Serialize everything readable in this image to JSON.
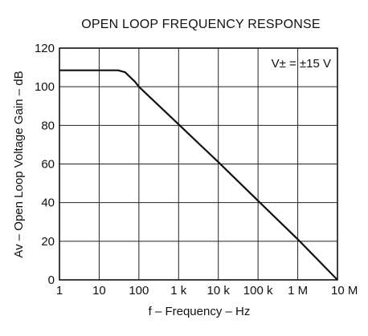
{
  "chart_data": {
    "type": "line",
    "title": "OPEN LOOP FREQUENCY RESPONSE",
    "annotation": "V± = ±15 V",
    "xlabel": "f – Frequency – Hz",
    "ylabel": "Av – Open Loop Voltage Gain – dB",
    "xscale": "log",
    "xlim": [
      1,
      10000000
    ],
    "ylim": [
      0,
      120
    ],
    "grid": true,
    "x_ticks": [
      {
        "value": 1,
        "label": "1"
      },
      {
        "value": 10,
        "label": "10"
      },
      {
        "value": 100,
        "label": "100"
      },
      {
        "value": 1000,
        "label": "1 k"
      },
      {
        "value": 10000,
        "label": "10 k"
      },
      {
        "value": 100000,
        "label": "100 k"
      },
      {
        "value": 1000000,
        "label": "1 M"
      },
      {
        "value": 10000000,
        "label": "10 M"
      }
    ],
    "y_ticks": [
      {
        "value": 0,
        "label": "0"
      },
      {
        "value": 20,
        "label": "20"
      },
      {
        "value": 40,
        "label": "40"
      },
      {
        "value": 60,
        "label": "60"
      },
      {
        "value": 80,
        "label": "80"
      },
      {
        "value": 100,
        "label": "100"
      },
      {
        "value": 120,
        "label": "120"
      }
    ],
    "series": [
      {
        "x": [
          1,
          30,
          45,
          60,
          80,
          100,
          1000,
          10000,
          100000,
          1000000,
          10000000
        ],
        "y": [
          108.5,
          108.5,
          107.5,
          105,
          102.5,
          100,
          80.5,
          61,
          41,
          21,
          0
        ]
      }
    ]
  }
}
